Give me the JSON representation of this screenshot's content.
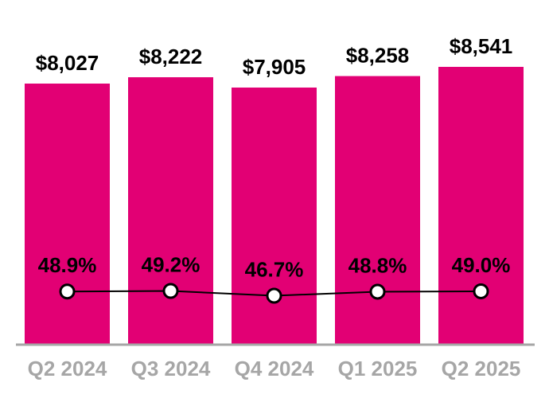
{
  "chart_data": {
    "type": "bar",
    "combo": "bar with line overlay",
    "title": "",
    "xlabel": "",
    "ylabel": "",
    "categories": [
      "Q2 2024",
      "Q3 2024",
      "Q4 2024",
      "Q1 2025",
      "Q2 2025"
    ],
    "series": [
      {
        "type": "bar",
        "values": [
          8027,
          8222,
          7905,
          8258,
          8541
        ],
        "labels": [
          "$8,027",
          "$8,222",
          "$7,905",
          "$8,258",
          "$8,541"
        ],
        "color": "#E20074"
      },
      {
        "type": "line",
        "values": [
          48.9,
          49.2,
          46.7,
          48.8,
          49.0
        ],
        "labels": [
          "48.9%",
          "49.2%",
          "46.7%",
          "48.8%",
          "49.0%"
        ],
        "color": "#000000",
        "marker_fill": "#FFFFFF",
        "marker_stroke": "#000000"
      }
    ],
    "layout": {
      "value_axis_shown": false,
      "gridlines": false,
      "legend": "none",
      "data_labels": true,
      "axis_line_color": "#A6A6A6",
      "category_label_color": "#A6A6A6",
      "data_label_color": "#000000",
      "background": "#FFFFFF"
    }
  }
}
